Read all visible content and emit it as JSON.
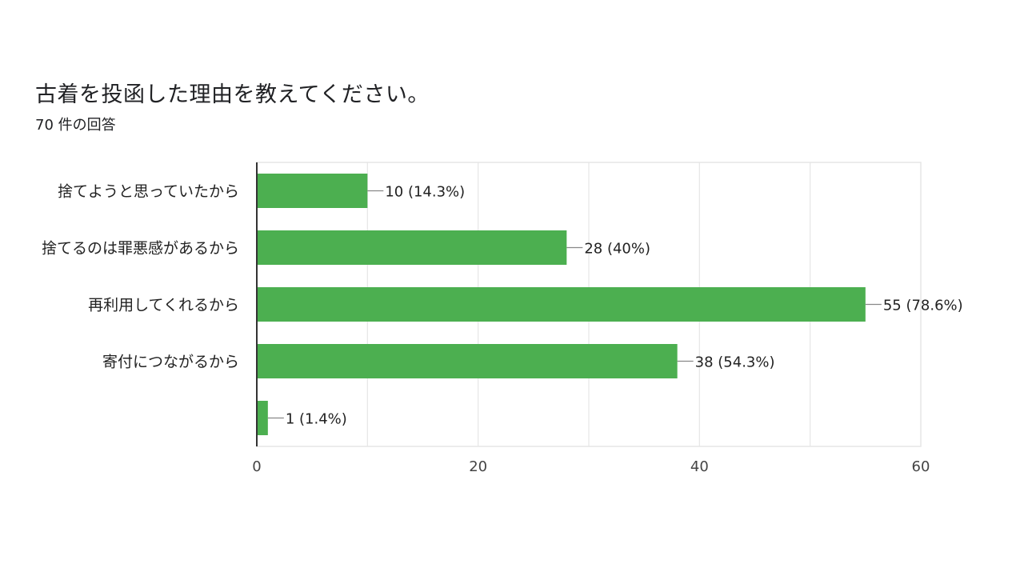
{
  "header": {
    "title": "古着を投函した理由を教えてください。",
    "response_count": "70 件の回答"
  },
  "chart_data": {
    "type": "bar",
    "orientation": "horizontal",
    "categories": [
      "捨てようと思っていたから",
      "捨てるのは罪悪感があるから",
      "再利用してくれるから",
      "寄付につながるから",
      ""
    ],
    "values": [
      10,
      28,
      55,
      38,
      1
    ],
    "value_labels": [
      "10 (14.3%)",
      "28 (40%)",
      "55 (78.6%)",
      "38 (54.3%)",
      "1 (1.4%)"
    ],
    "xlim": [
      0,
      60
    ],
    "x_ticks": [
      "0",
      "20",
      "40",
      "60"
    ],
    "grid": true,
    "colors": {
      "bar": "#4caf50",
      "grid": "#e6e6e6",
      "axis": "#333333",
      "leader": "#888888"
    }
  }
}
